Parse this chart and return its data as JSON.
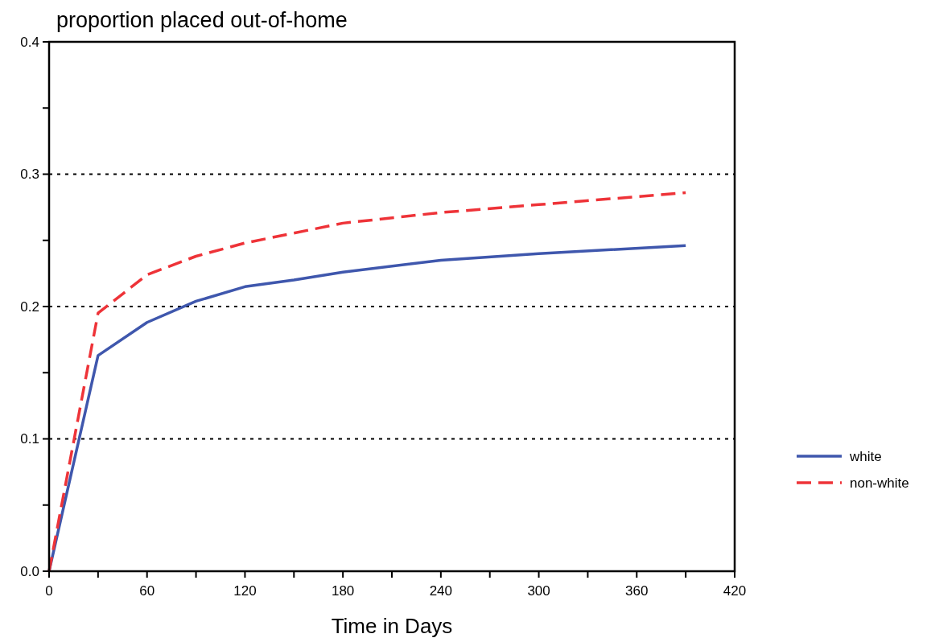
{
  "chart_data": {
    "type": "line",
    "title": "proportion placed out-of-home",
    "xlabel": "Time in Days",
    "xlim": [
      0,
      420
    ],
    "xticks": [
      0,
      {
        "value": 30,
        "label": null
      },
      60,
      {
        "value": 90,
        "label": null
      },
      120,
      {
        "value": 150,
        "label": null
      },
      180,
      {
        "value": 210,
        "label": null
      },
      240,
      {
        "value": 270,
        "label": null
      },
      300,
      {
        "value": 330,
        "label": null
      },
      360,
      {
        "value": 390,
        "label": null
      },
      420
    ],
    "ylim": [
      0,
      0.4
    ],
    "yticks": [
      "0.0",
      {
        "value": 0.05,
        "label": null
      },
      0.1,
      {
        "value": 0.15,
        "label": null
      },
      0.2,
      {
        "value": 0.25,
        "label": null
      },
      0.3,
      {
        "value": 0.35,
        "label": null
      },
      0.4
    ],
    "grid": "y",
    "legend": "right",
    "series": [
      {
        "name": "white",
        "color": "#3f57ad",
        "line_style": "solid",
        "x": [
          0,
          30,
          60,
          90,
          120,
          150,
          180,
          240,
          300,
          390
        ],
        "values": [
          0,
          0.163,
          0.188,
          0.204,
          0.215,
          0.22,
          0.226,
          0.235,
          0.24,
          0.246
        ]
      },
      {
        "name": "non-white",
        "color": "#ee3338",
        "line_style": "dashed",
        "x": [
          0,
          30,
          60,
          90,
          120,
          180,
          240,
          300,
          390
        ],
        "values": [
          0,
          0.195,
          0.224,
          0.238,
          0.248,
          0.263,
          0.271,
          0.277,
          0.286
        ]
      }
    ]
  }
}
